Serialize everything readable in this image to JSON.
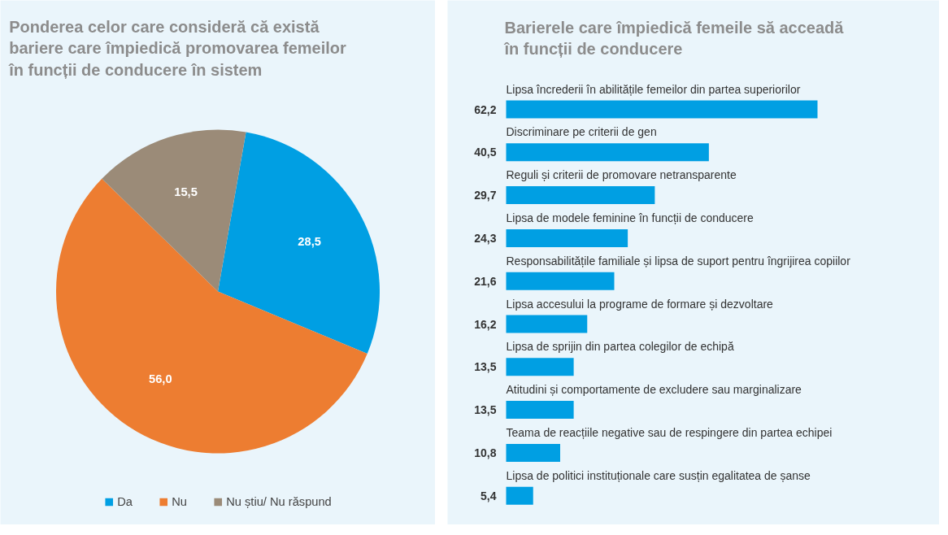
{
  "chart_data": [
    {
      "type": "pie",
      "title": "Ponderea celor care consideră că există bariere care împiedică promovarea femeilor în funcții de conducere în sistem",
      "categories": [
        "Da",
        "Nu",
        "Nu știu/ Nu răspund"
      ],
      "values": [
        28.5,
        56.0,
        15.5
      ],
      "value_labels": [
        "28,5",
        "56,0",
        "15,5"
      ],
      "colors": [
        "#009fe3",
        "#ed7d31",
        "#9b8b78"
      ],
      "legend": "bottom"
    },
    {
      "type": "bar",
      "orientation": "horizontal",
      "title": "Barierele care împiedică femeile să acceadă în funcții de conducere",
      "categories": [
        "Lipsa încrederii în abilitățile femeilor din partea superiorilor",
        "Discriminare pe criterii de gen",
        "Reguli și criterii de promovare netransparente",
        "Lipsa de modele feminine în funcții de conducere",
        "Responsabilitățile familiale și lipsa de suport pentru îngrijirea copiilor",
        "Lipsa accesului la programe de formare și dezvoltare",
        "Lipsa de sprijin din partea colegilor de echipă",
        "Atitudini și comportamente de excludere sau marginalizare",
        "Teama de reacțiile negative sau de respingere din partea echipei",
        "Lipsa de politici instituționale care susțin egalitatea de șanse"
      ],
      "values": [
        62.2,
        40.5,
        29.7,
        24.3,
        21.6,
        16.2,
        13.5,
        13.5,
        10.8,
        5.4
      ],
      "value_labels": [
        "62,2",
        "40,5",
        "29,7",
        "24,3",
        "21,6",
        "16,2",
        "13,5",
        "13,5",
        "10,8",
        "5,4"
      ],
      "color": "#009fe3"
    }
  ]
}
